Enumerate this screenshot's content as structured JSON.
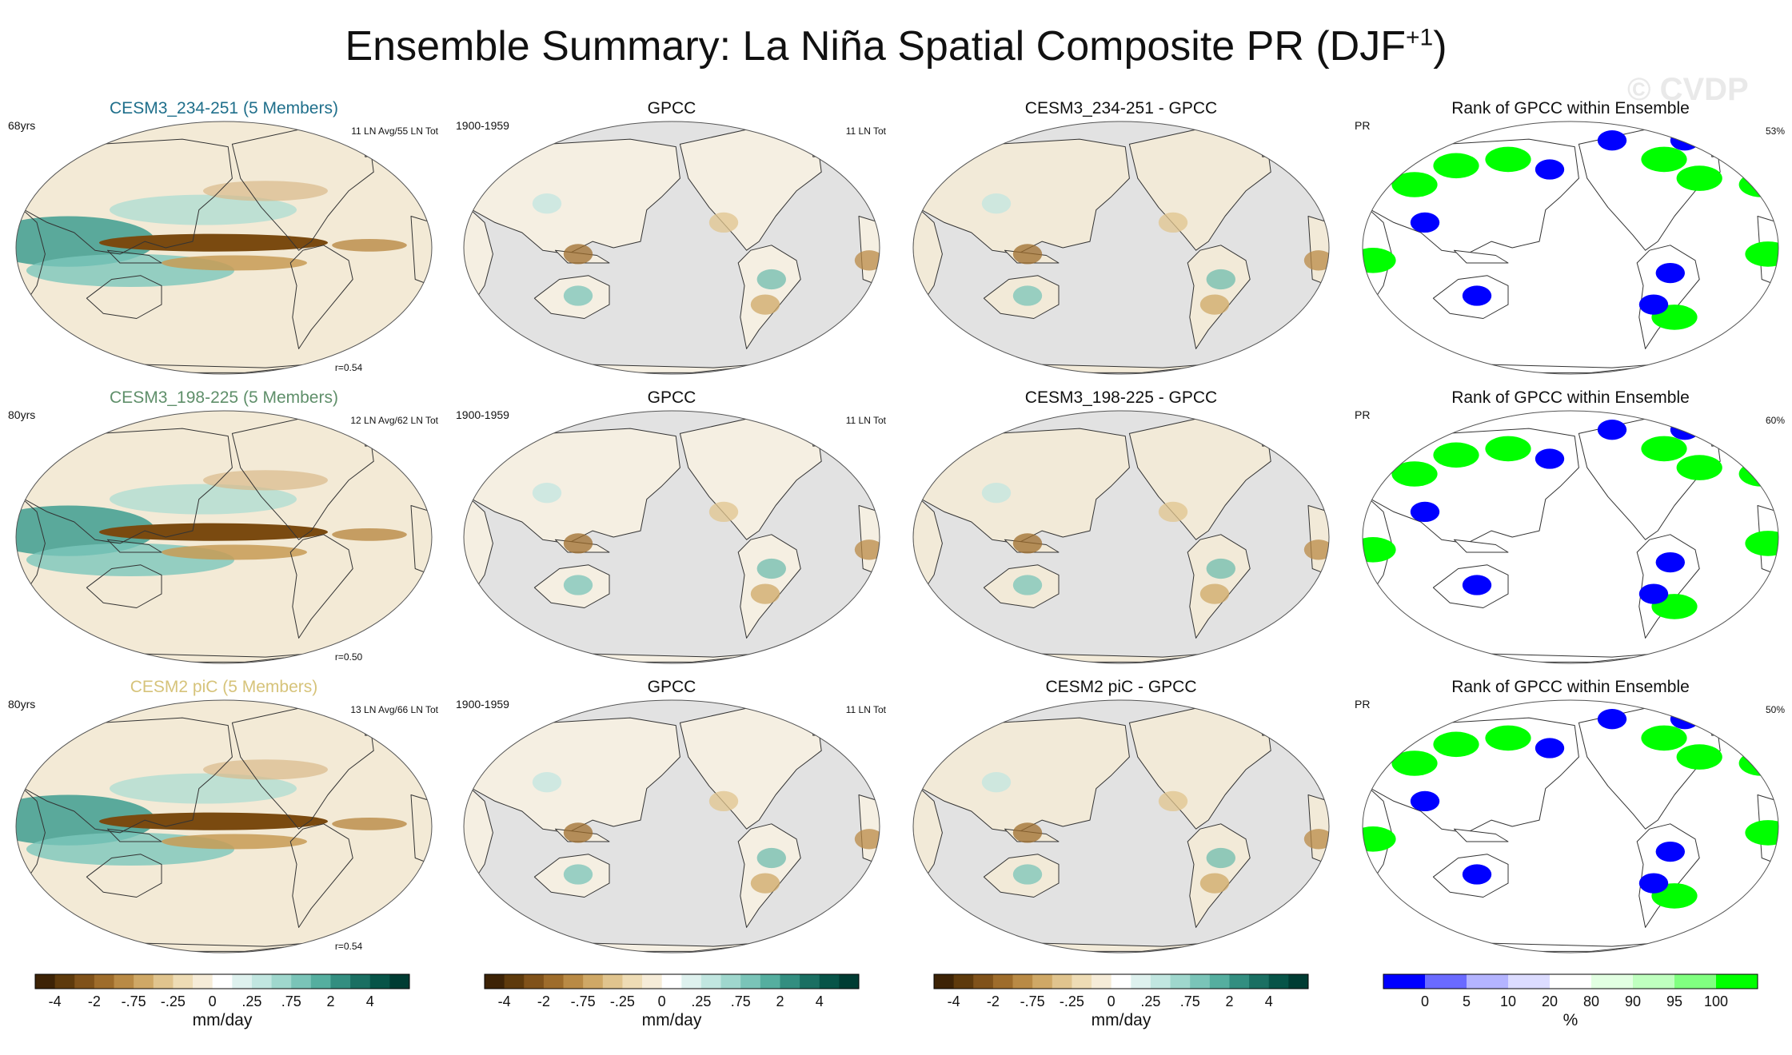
{
  "page": {
    "title_main": "Ensemble Summary: La Niña Spatial Composite PR (DJF",
    "title_sup": "+1",
    "title_close": ")",
    "watermark": "© CVDP"
  },
  "colors": {
    "ocean_gray": "#e2e2e2",
    "coast": "#333333",
    "ens1_title": "#1f6f8b",
    "ens2_title": "#5f8f6a",
    "ens3_title": "#d6c37a",
    "rank_low": "#0000ff",
    "rank_high": "#00ff00"
  },
  "chart_data": [
    {
      "type": "heatmap",
      "panel": "ensemble-1",
      "title": "CESM3_234-251 (5 Members)",
      "title_color": "#1f6f8b",
      "left_label": "68yrs",
      "right_label": "11 LN Avg/55 LN Tot",
      "bottom_right": "r=0.54",
      "ocean_masked": false,
      "grid": false
    },
    {
      "type": "heatmap",
      "panel": "obs-1",
      "title": "GPCC",
      "left_label": "1900-1959",
      "right_label": "11 LN Tot",
      "ocean_masked": true,
      "grid": false
    },
    {
      "type": "heatmap",
      "panel": "diff-1",
      "title": "CESM3_234-251 - GPCC",
      "ocean_masked": true,
      "grid": false
    },
    {
      "type": "heatmap",
      "panel": "rank-1",
      "title": "Rank of GPCC within Ensemble",
      "left_label": "PR",
      "right_label": "53%",
      "ocean_masked": true,
      "grid": false
    },
    {
      "type": "heatmap",
      "panel": "ensemble-2",
      "title": "CESM3_198-225 (5 Members)",
      "title_color": "#5f8f6a",
      "left_label": "80yrs",
      "right_label": "12 LN Avg/62 LN Tot",
      "bottom_right": "r=0.50",
      "ocean_masked": false,
      "grid": false
    },
    {
      "type": "heatmap",
      "panel": "obs-2",
      "title": "GPCC",
      "left_label": "1900-1959",
      "right_label": "11 LN Tot",
      "ocean_masked": true,
      "grid": false
    },
    {
      "type": "heatmap",
      "panel": "diff-2",
      "title": "CESM3_198-225 - GPCC",
      "ocean_masked": true,
      "grid": false
    },
    {
      "type": "heatmap",
      "panel": "rank-2",
      "title": "Rank of GPCC within Ensemble",
      "left_label": "PR",
      "right_label": "60%",
      "ocean_masked": true,
      "grid": false
    },
    {
      "type": "heatmap",
      "panel": "ensemble-3",
      "title": "CESM2 piC (5 Members)",
      "title_color": "#d6c37a",
      "left_label": "80yrs",
      "right_label": "13 LN Avg/66 LN Tot",
      "bottom_right": "r=0.54",
      "ocean_masked": false,
      "grid": false
    },
    {
      "type": "heatmap",
      "panel": "obs-3",
      "title": "GPCC",
      "left_label": "1900-1959",
      "right_label": "11 LN Tot",
      "ocean_masked": true,
      "grid": false
    },
    {
      "type": "heatmap",
      "panel": "diff-3",
      "title": "CESM2 piC - GPCC",
      "ocean_masked": true,
      "grid": false
    },
    {
      "type": "heatmap",
      "panel": "rank-3",
      "title": "Rank of GPCC within Ensemble",
      "left_label": "PR",
      "right_label": "50%",
      "ocean_masked": true,
      "grid": false
    }
  ],
  "colorbars": [
    {
      "unit": "mm/day",
      "tick_labels": [
        "-4",
        "-2",
        "-.75",
        "-.25",
        "0",
        ".25",
        ".75",
        "2",
        "4"
      ],
      "colors": [
        "#3d2306",
        "#5e3a0c",
        "#80521a",
        "#9e6c2b",
        "#b98a45",
        "#cfa866",
        "#e0c48e",
        "#eedcb5",
        "#f6ecd8",
        "#ffffff",
        "#def1ee",
        "#c1e6e0",
        "#9fd7cd",
        "#7ac4b8",
        "#55ae9f",
        "#338e80",
        "#1a6f62",
        "#075448",
        "#003c33"
      ]
    },
    {
      "unit": "mm/day",
      "tick_labels": [
        "-4",
        "-2",
        "-.75",
        "-.25",
        "0",
        ".25",
        ".75",
        "2",
        "4"
      ],
      "colors": [
        "#3d2306",
        "#5e3a0c",
        "#80521a",
        "#9e6c2b",
        "#b98a45",
        "#cfa866",
        "#e0c48e",
        "#eedcb5",
        "#f6ecd8",
        "#ffffff",
        "#def1ee",
        "#c1e6e0",
        "#9fd7cd",
        "#7ac4b8",
        "#55ae9f",
        "#338e80",
        "#1a6f62",
        "#075448",
        "#003c33"
      ]
    },
    {
      "unit": "mm/day",
      "tick_labels": [
        "-4",
        "-2",
        "-.75",
        "-.25",
        "0",
        ".25",
        ".75",
        "2",
        "4"
      ],
      "colors": [
        "#3d2306",
        "#5e3a0c",
        "#80521a",
        "#9e6c2b",
        "#b98a45",
        "#cfa866",
        "#e0c48e",
        "#eedcb5",
        "#f6ecd8",
        "#ffffff",
        "#def1ee",
        "#c1e6e0",
        "#9fd7cd",
        "#7ac4b8",
        "#55ae9f",
        "#338e80",
        "#1a6f62",
        "#075448",
        "#003c33"
      ]
    },
    {
      "unit": "%",
      "tick_labels": [
        "0",
        "5",
        "10",
        "20",
        "80",
        "90",
        "95",
        "100"
      ],
      "colors": [
        "#0000ff",
        "#6a6aff",
        "#b4b4ff",
        "#dcdcff",
        "#ffffff",
        "#e2ffe2",
        "#bfffbf",
        "#80ff80",
        "#00ff00"
      ]
    }
  ]
}
